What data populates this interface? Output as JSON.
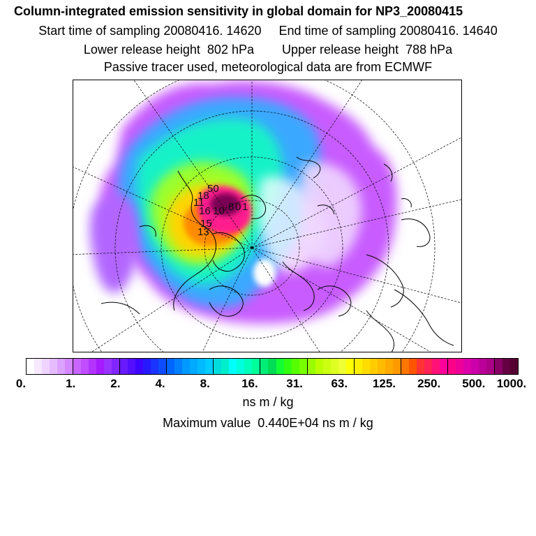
{
  "header": {
    "title": "Column-integrated emission sensitivity in global domain for NP3_20080415",
    "sampling": "Start time of sampling 20080416. 14620     End time of sampling 20080416. 14640",
    "release": "Lower release height  802 hPa        Upper release height  788 hPa",
    "note": "Passive tracer used, meteorological data are from ECMWF"
  },
  "colorbar": {
    "ticks": [
      "0.",
      "1.",
      "2.",
      "4.",
      "8.",
      "16.",
      "31.",
      "63.",
      "125.",
      "250.",
      "500.",
      "1000."
    ],
    "colors": [
      "#ffffff",
      "#f6e9ff",
      "#efd4ff",
      "#e6bcff",
      "#dca2ff",
      "#d487ff",
      "#c966ff",
      "#c04dff",
      "#b333ff",
      "#a51aff",
      "#9933ff",
      "#8126ff",
      "#6a1aff",
      "#540fff",
      "#3d05ff",
      "#2619ff",
      "#1a33ff",
      "#0d4dff",
      "#0066ff",
      "#0080ff",
      "#0099ff",
      "#00aaff",
      "#00bbff",
      "#00ccff",
      "#00dddd",
      "#00eecc",
      "#00ffff",
      "#00ffdd",
      "#00ffbb",
      "#00ff99",
      "#00ee77",
      "#00dd55",
      "#11ff33",
      "#33ff11",
      "#55ff00",
      "#77ff00",
      "#99ff00",
      "#bbff00",
      "#ccff11",
      "#ddff22",
      "#eeff33",
      "#ffff00",
      "#ffee00",
      "#ffdd00",
      "#ffcc00",
      "#ffbb00",
      "#ffaa00",
      "#ff9900",
      "#ff7700",
      "#ff5500",
      "#ff3333",
      "#ff2255",
      "#ff1177",
      "#ff0099",
      "#ff0088",
      "#ee0099",
      "#dd00aa",
      "#cc00aa",
      "#bb0099",
      "#aa0088",
      "#880066",
      "#660044",
      "#550033"
    ],
    "unit": "ns m / kg"
  },
  "maximum": "Maximum value  0.440E+04 ns m / kg",
  "map": {
    "labels": [
      "50",
      "18",
      "11",
      "16",
      "10",
      "8",
      "0",
      "1",
      "15",
      "13"
    ]
  }
}
